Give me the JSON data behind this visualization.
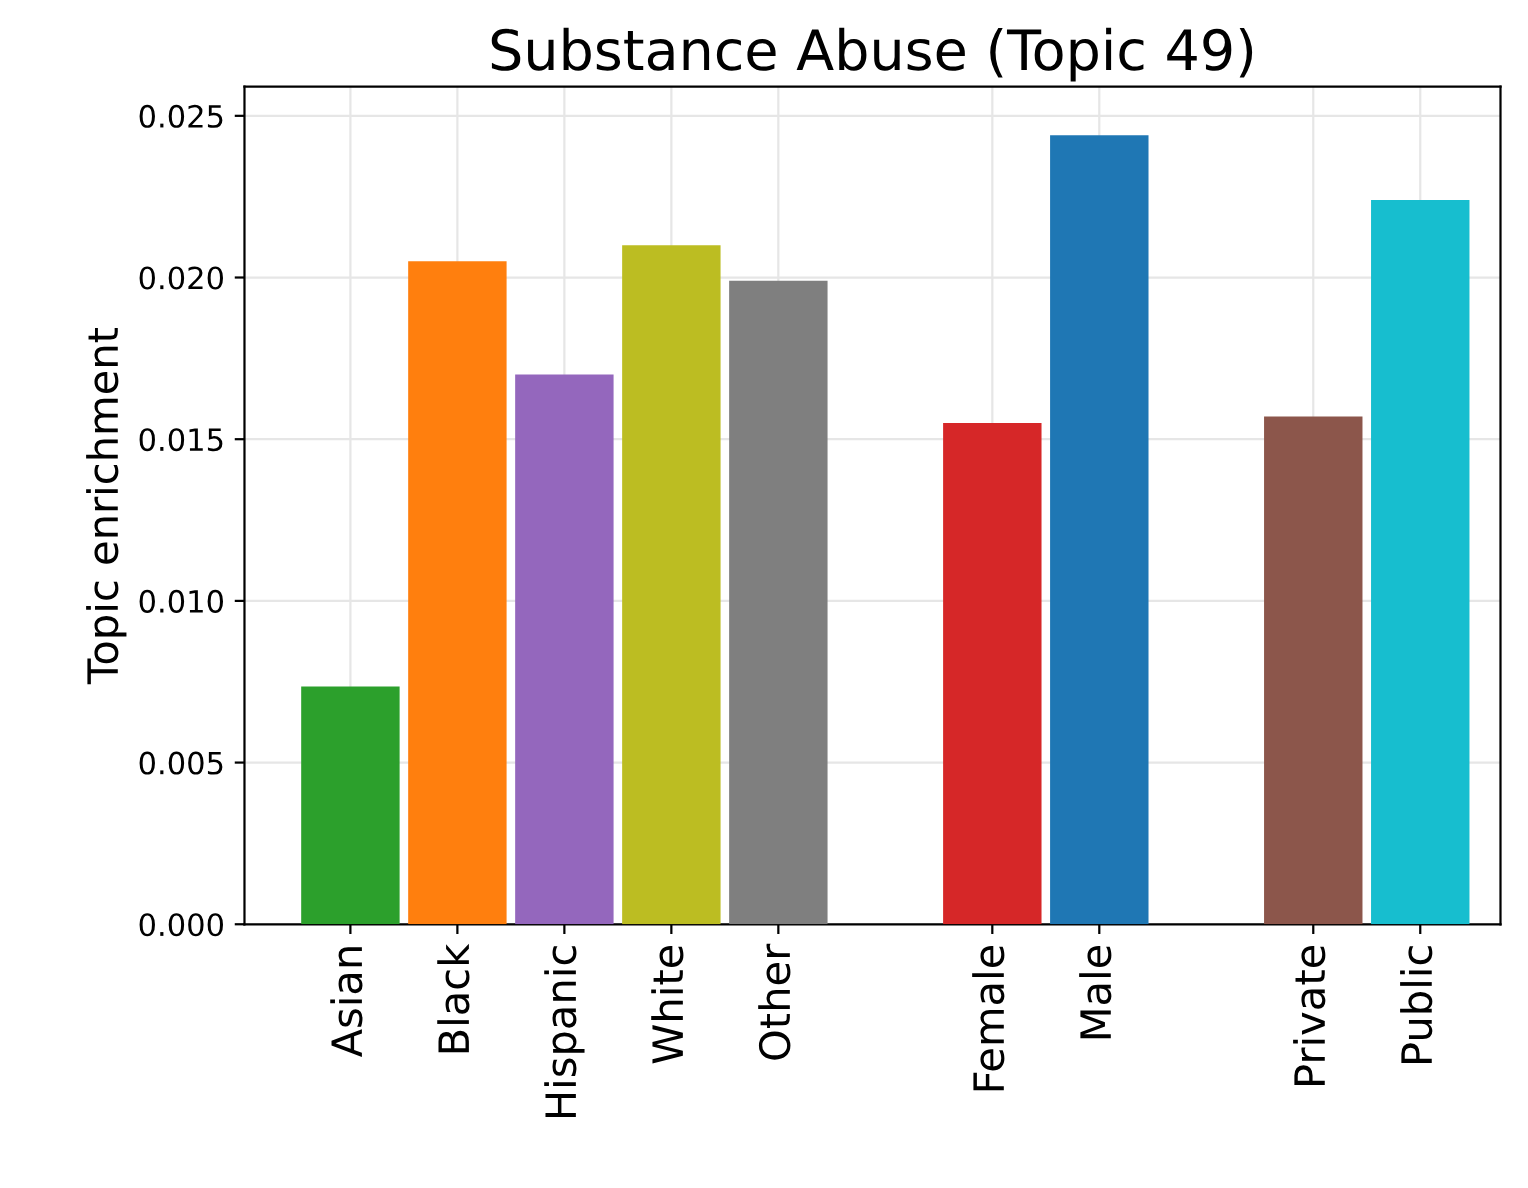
{
  "chart_data": {
    "type": "bar",
    "title": "Substance Abuse (Topic 49)",
    "ylabel": "Topic enrichment",
    "categories": [
      "Asian",
      "Black",
      "Hispanic",
      "White",
      "Other",
      null,
      "Female",
      "Male",
      null,
      "Private",
      "Public"
    ],
    "values": [
      0.00735,
      0.0205,
      0.017,
      0.021,
      0.0199,
      null,
      0.0155,
      0.0244,
      null,
      0.0157,
      0.0224
    ],
    "colors": [
      "#2ca02c",
      "#ff7f0e",
      "#9467bd",
      "#bcbd22",
      "#7f7f7f",
      null,
      "#d62728",
      "#1f77b4",
      null,
      "#8c564b",
      "#17becf"
    ],
    "ylim": [
      0,
      0.0259
    ],
    "yticks": [
      {
        "value": 0,
        "label": "0.000"
      },
      {
        "value": 0.005,
        "label": "0.005"
      },
      {
        "value": 0.01,
        "label": "0.010"
      },
      {
        "value": 0.015,
        "label": "0.015"
      },
      {
        "value": 0.02,
        "label": "0.020"
      },
      {
        "value": 0.025,
        "label": "0.025"
      }
    ],
    "grid": true
  }
}
